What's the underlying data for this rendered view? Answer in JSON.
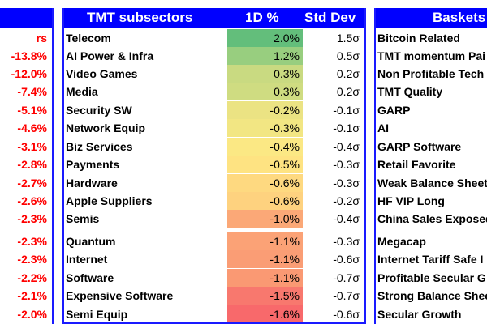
{
  "left_panel": {
    "header_fragment": "rs",
    "values": [
      "-13.8%",
      "-12.0%",
      "-7.4%",
      "-5.1%",
      "-4.6%",
      "-3.1%",
      "-2.8%",
      "-2.7%",
      "-2.6%",
      "-2.3%",
      "-2.3%",
      "-2.3%",
      "-2.2%",
      "-2.1%",
      "-2.0%"
    ]
  },
  "middle_panel": {
    "headers": {
      "name": "TMT subsectors",
      "one_day": "1D %",
      "std_dev": "Std Dev"
    },
    "rows": [
      {
        "name": "Telecom",
        "one_day": "2.0%",
        "std_dev": "1.5σ",
        "color": "#63be7b"
      },
      {
        "name": "AI Power & Infra",
        "one_day": "1.2%",
        "std_dev": "0.5σ",
        "color": "#98ce7f"
      },
      {
        "name": "Video Games",
        "one_day": "0.3%",
        "std_dev": "0.2σ",
        "color": "#c9da81"
      },
      {
        "name": "Media",
        "one_day": "0.3%",
        "std_dev": "0.2σ",
        "color": "#cfdc81"
      },
      {
        "name": "Security SW",
        "one_day": "-0.2%",
        "std_dev": "-0.1σ",
        "color": "#ebe383"
      },
      {
        "name": "Network Equip",
        "one_day": "-0.3%",
        "std_dev": "-0.1σ",
        "color": "#f2e683"
      },
      {
        "name": "Biz Services",
        "one_day": "-0.4%",
        "std_dev": "-0.4σ",
        "color": "#fbe884"
      },
      {
        "name": "Payments",
        "one_day": "-0.5%",
        "std_dev": "-0.3σ",
        "color": "#fee382"
      },
      {
        "name": "Hardware",
        "one_day": "-0.6%",
        "std_dev": "-0.3σ",
        "color": "#fed980"
      },
      {
        "name": "Apple Suppliers",
        "one_day": "-0.6%",
        "std_dev": "-0.2σ",
        "color": "#fed27f"
      },
      {
        "name": "Semis",
        "one_day": "-1.0%",
        "std_dev": "-0.4σ",
        "color": "#fba877"
      },
      {
        "name": "Quantum",
        "one_day": "-1.1%",
        "std_dev": "-0.3σ",
        "color": "#fba276"
      },
      {
        "name": "Internet",
        "one_day": "-1.1%",
        "std_dev": "-0.6σ",
        "color": "#fa9d75"
      },
      {
        "name": "Software",
        "one_day": "-1.1%",
        "std_dev": "-0.7σ",
        "color": "#fa9973"
      },
      {
        "name": "Expensive Software",
        "one_day": "-1.5%",
        "std_dev": "-0.7σ",
        "color": "#f8786e"
      },
      {
        "name": "Semi Equip",
        "one_day": "-1.6%",
        "std_dev": "-0.6σ",
        "color": "#f8696b"
      }
    ]
  },
  "right_panel": {
    "header": "Baskets",
    "items": [
      "Bitcoin Related",
      "TMT momentum Pai",
      "Non Profitable Tech",
      "TMT Quality",
      "GARP",
      "AI",
      "GARP Software",
      "Retail Favorite",
      "Weak Balance Sheet",
      "HF VIP Long",
      "China Sales Exposed",
      "Megacap",
      "Internet Tariff Safe I",
      "Profitable Secular G",
      "Strong Balance Shee",
      "Secular Growth"
    ]
  }
}
